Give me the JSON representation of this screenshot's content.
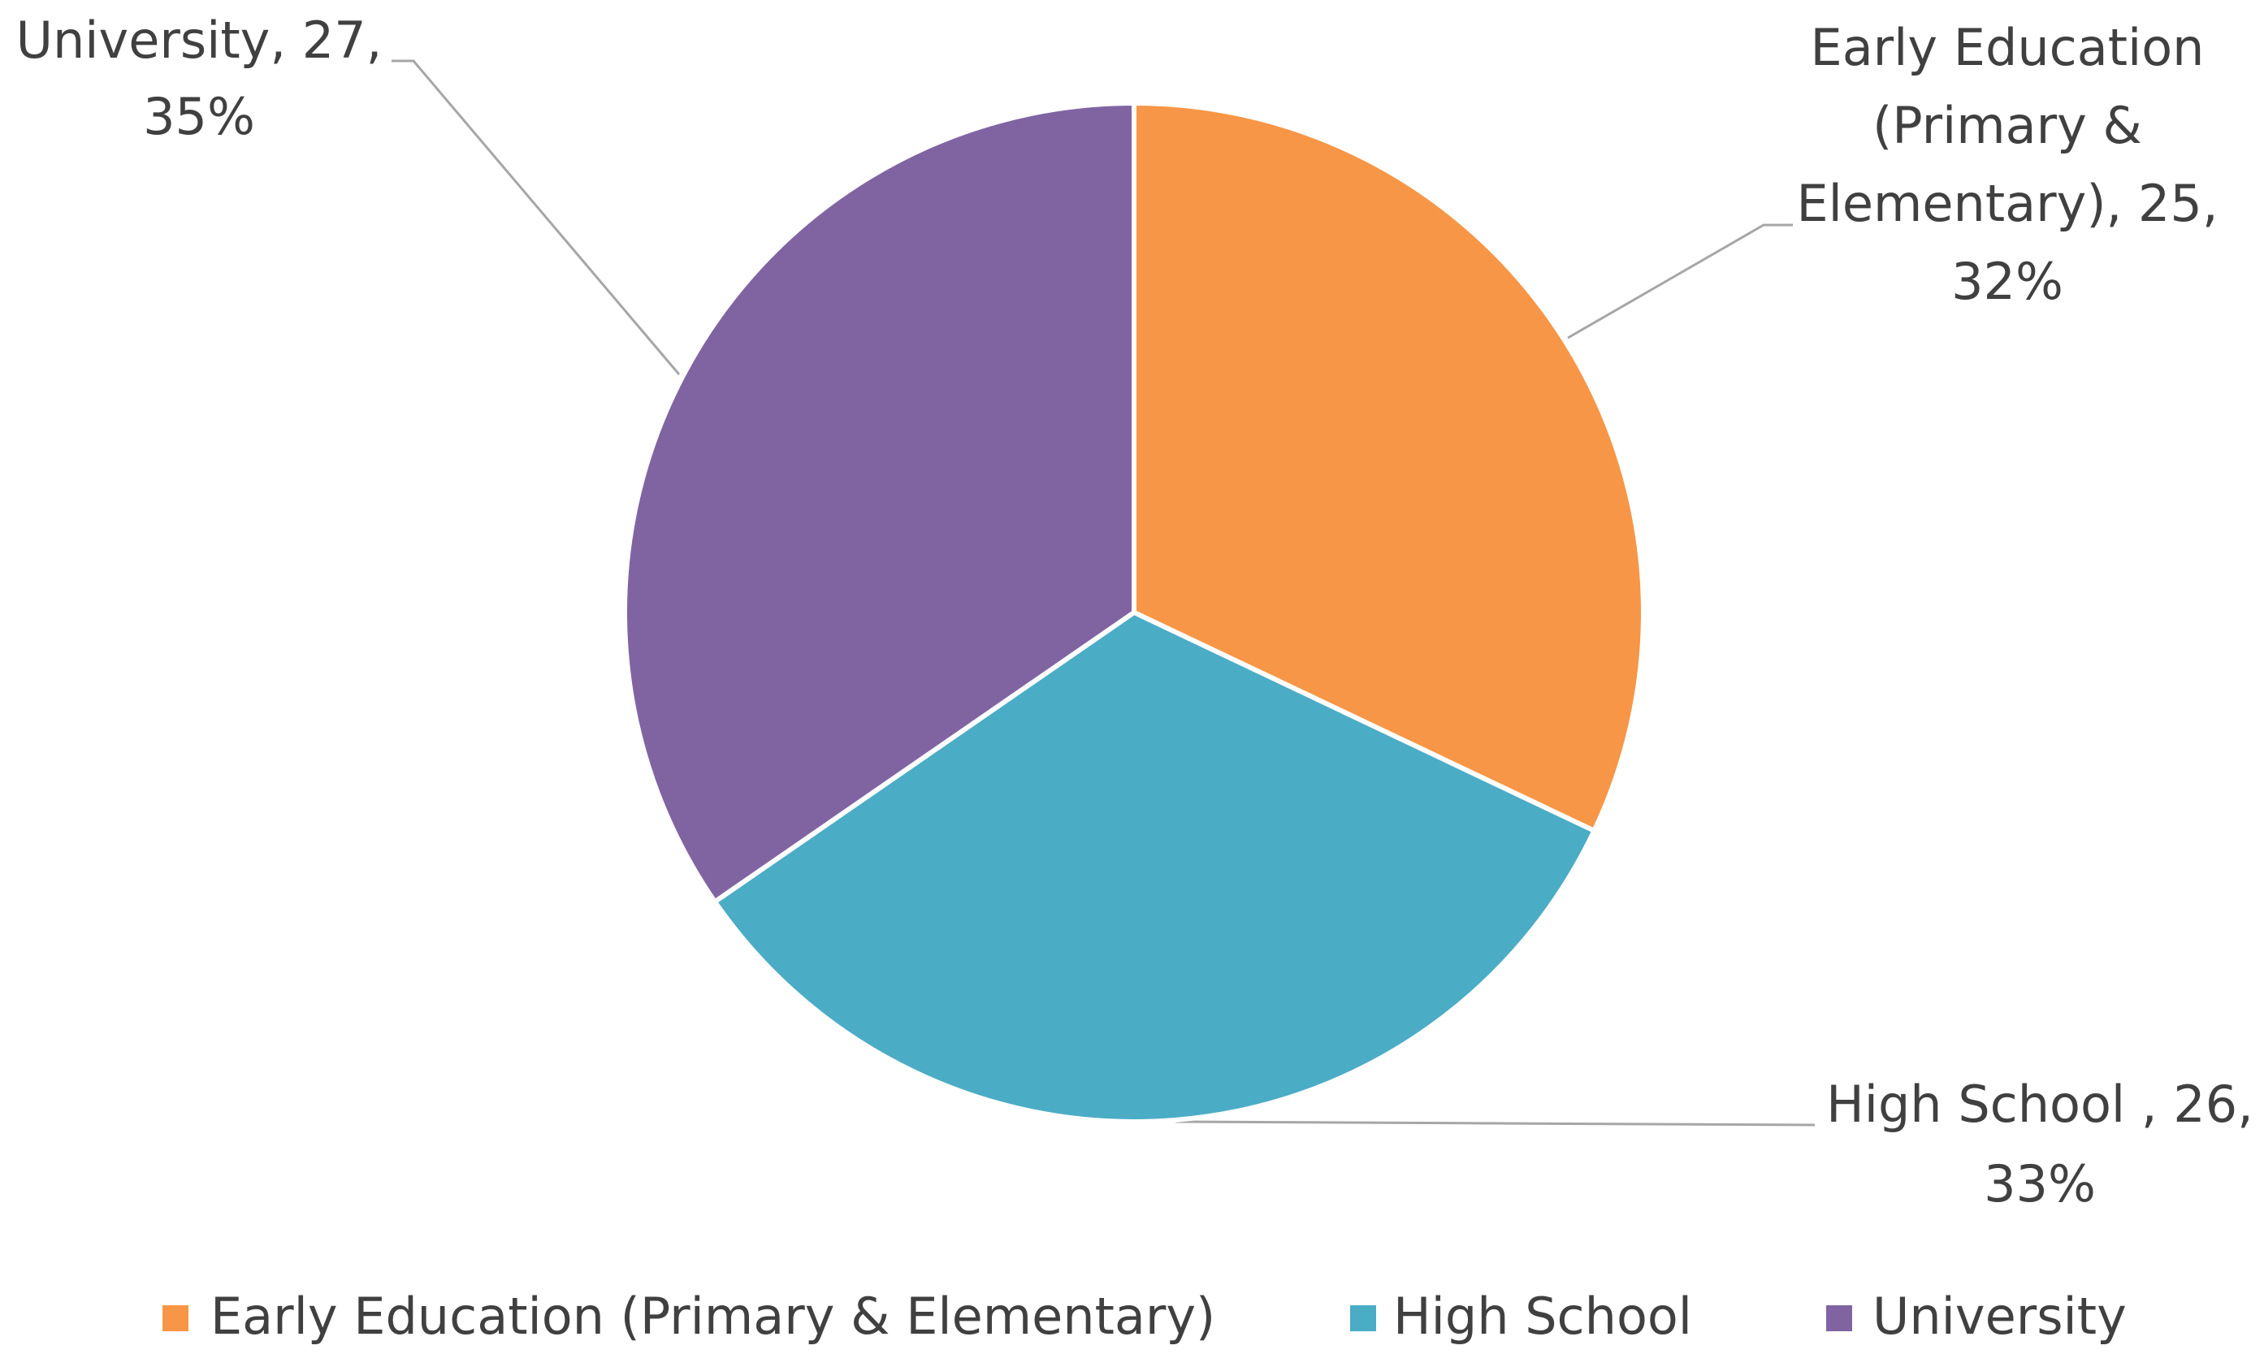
{
  "chart_data": {
    "type": "pie",
    "categories": [
      "Early Education (Primary & Elementary)",
      "High School",
      "University"
    ],
    "values": [
      25,
      26,
      27
    ],
    "percentages": [
      32,
      33,
      35
    ],
    "colors": [
      "#f79646",
      "#4bacc6",
      "#8064a2"
    ],
    "data_labels": [
      [
        "Early Education",
        "(Primary &",
        "Elementary), 25,",
        "32%"
      ],
      [
        "High School , 26,",
        "33%"
      ],
      [
        "University, 27,",
        "35%"
      ]
    ],
    "legend": "bottom"
  }
}
